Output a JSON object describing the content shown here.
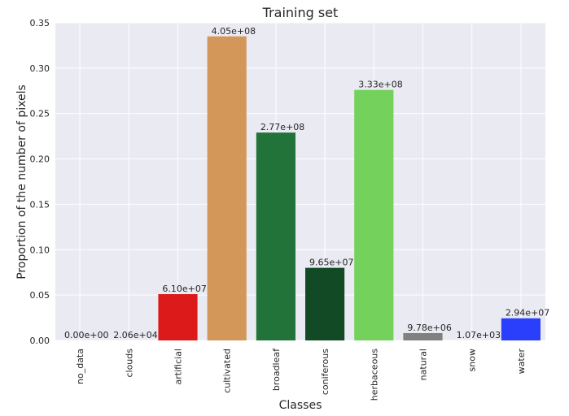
{
  "chart_data": {
    "type": "bar",
    "title": "Training set",
    "xlabel": "Classes",
    "ylabel": "Proportion of the number of pixels",
    "categories": [
      "no_data",
      "clouds",
      "artificial",
      "cultivated",
      "broadleaf",
      "coniferous",
      "herbaceous",
      "natural",
      "snow",
      "water"
    ],
    "values": [
      0.0,
      2e-05,
      0.051,
      0.335,
      0.229,
      0.08,
      0.276,
      0.0081,
      9e-07,
      0.0244
    ],
    "data_labels": [
      "0.00e+00",
      "2.06e+04",
      "6.10e+07",
      "4.05e+08",
      "2.77e+08",
      "9.65e+07",
      "3.33e+08",
      "9.78e+06",
      "1.07e+03",
      "2.94e+07"
    ],
    "colors": [
      "#eaeaf2",
      "#eaeaf2",
      "#dc1a1a",
      "#d4975a",
      "#21733a",
      "#124a26",
      "#74d15c",
      "#808080",
      "#eaeaf2",
      "#2a3ffc"
    ],
    "ylim": [
      0,
      0.35
    ],
    "yticks": [
      "0.00",
      "0.05",
      "0.10",
      "0.15",
      "0.20",
      "0.25",
      "0.30",
      "0.35"
    ],
    "grid": true,
    "background": "#eaeaf2",
    "grid_color": "#ffffff"
  }
}
